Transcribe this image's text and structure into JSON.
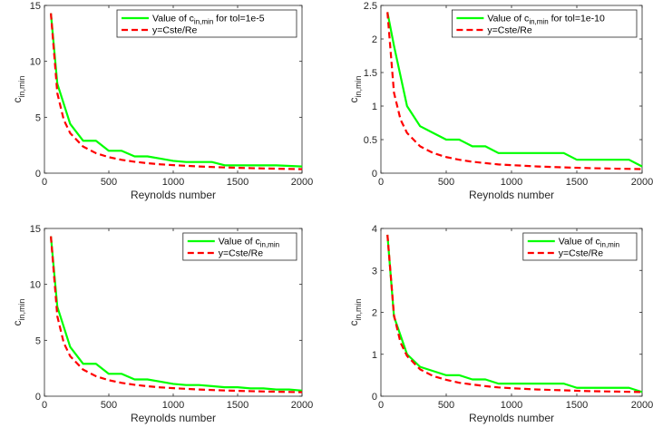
{
  "chart_data": [
    {
      "type": "line",
      "xlabel": "Reynolds number",
      "ylabel_main": "c",
      "ylabel_sub": "in,min",
      "xlim": [
        0,
        2000
      ],
      "ylim": [
        0,
        15
      ],
      "xticks": [
        0,
        500,
        1000,
        1500,
        2000
      ],
      "yticks": [
        0,
        5,
        10,
        15
      ],
      "grid": false,
      "legend_position": "top-right",
      "series": [
        {
          "name_main": "Value of c",
          "name_sub": "in,min",
          "name_suffix": " for tol=1e-5",
          "color": "#00ff00",
          "style": "solid",
          "x": [
            50,
            100,
            200,
            300,
            400,
            500,
            600,
            700,
            800,
            900,
            1000,
            1100,
            1200,
            1300,
            1400,
            1500,
            1600,
            1700,
            1800,
            1900,
            2000
          ],
          "y": [
            14.3,
            8.0,
            4.4,
            2.9,
            2.9,
            2.0,
            2.0,
            1.5,
            1.5,
            1.3,
            1.1,
            1.0,
            1.0,
            1.0,
            0.7,
            0.7,
            0.7,
            0.7,
            0.7,
            0.65,
            0.6
          ]
        },
        {
          "name_main": "y=Cste/Re",
          "name_sub": "",
          "name_suffix": "",
          "color": "#ff0000",
          "style": "dashed",
          "x": [
            50,
            100,
            150,
            200,
            300,
            400,
            500,
            600,
            700,
            800,
            900,
            1000,
            1200,
            1400,
            1600,
            1800,
            2000
          ],
          "y": [
            14.3,
            7.15,
            4.77,
            3.58,
            2.38,
            1.79,
            1.43,
            1.19,
            1.02,
            0.89,
            0.79,
            0.72,
            0.6,
            0.51,
            0.45,
            0.4,
            0.36
          ]
        }
      ]
    },
    {
      "type": "line",
      "xlabel": "Reynolds number",
      "ylabel_main": "c",
      "ylabel_sub": "in,min",
      "xlim": [
        0,
        2000
      ],
      "ylim": [
        0,
        2.5
      ],
      "xticks": [
        0,
        500,
        1000,
        1500,
        2000
      ],
      "yticks": [
        0,
        0.5,
        1,
        1.5,
        2,
        2.5
      ],
      "grid": false,
      "legend_position": "top-right",
      "series": [
        {
          "name_main": "Value of c",
          "name_sub": "in,min",
          "name_suffix": " for tol=1e-10",
          "color": "#00ff00",
          "style": "solid",
          "x": [
            50,
            100,
            200,
            300,
            400,
            500,
            600,
            700,
            800,
            900,
            1000,
            1100,
            1200,
            1300,
            1400,
            1500,
            1600,
            1700,
            1800,
            1900,
            2000
          ],
          "y": [
            2.4,
            1.9,
            1.0,
            0.7,
            0.6,
            0.5,
            0.5,
            0.4,
            0.4,
            0.3,
            0.3,
            0.3,
            0.3,
            0.3,
            0.3,
            0.2,
            0.2,
            0.2,
            0.2,
            0.2,
            0.1
          ]
        },
        {
          "name_main": "y=Cste/Re",
          "name_sub": "",
          "name_suffix": "",
          "color": "#ff0000",
          "style": "dashed",
          "x": [
            50,
            100,
            150,
            200,
            300,
            400,
            500,
            600,
            700,
            800,
            900,
            1000,
            1200,
            1400,
            1600,
            1800,
            2000
          ],
          "y": [
            2.4,
            1.2,
            0.8,
            0.6,
            0.4,
            0.3,
            0.24,
            0.2,
            0.17,
            0.15,
            0.13,
            0.12,
            0.1,
            0.086,
            0.075,
            0.067,
            0.06
          ]
        }
      ]
    },
    {
      "type": "line",
      "xlabel": "Reynolds number",
      "ylabel_main": "c",
      "ylabel_sub": "in,min",
      "xlim": [
        0,
        2000
      ],
      "ylim": [
        0,
        15
      ],
      "xticks": [
        0,
        500,
        1000,
        1500,
        2000
      ],
      "yticks": [
        0,
        5,
        10,
        15
      ],
      "grid": false,
      "legend_position": "top-right",
      "series": [
        {
          "name_main": "Value of c",
          "name_sub": "in,min",
          "name_suffix": "",
          "color": "#00ff00",
          "style": "solid",
          "x": [
            50,
            100,
            200,
            300,
            400,
            500,
            600,
            700,
            800,
            900,
            1000,
            1100,
            1200,
            1300,
            1400,
            1500,
            1600,
            1700,
            1800,
            1900,
            2000
          ],
          "y": [
            14.3,
            8.0,
            4.4,
            2.9,
            2.9,
            2.0,
            2.0,
            1.5,
            1.5,
            1.3,
            1.1,
            1.0,
            1.0,
            0.9,
            0.8,
            0.8,
            0.7,
            0.7,
            0.6,
            0.6,
            0.5
          ]
        },
        {
          "name_main": "y=Cste/Re",
          "name_sub": "",
          "name_suffix": "",
          "color": "#ff0000",
          "style": "dashed",
          "x": [
            50,
            100,
            150,
            200,
            300,
            400,
            500,
            600,
            700,
            800,
            900,
            1000,
            1200,
            1400,
            1600,
            1800,
            2000
          ],
          "y": [
            14.3,
            7.15,
            4.77,
            3.58,
            2.38,
            1.79,
            1.43,
            1.19,
            1.02,
            0.89,
            0.79,
            0.72,
            0.6,
            0.51,
            0.45,
            0.4,
            0.36
          ]
        }
      ]
    },
    {
      "type": "line",
      "xlabel": "Reynolds number",
      "ylabel_main": "c",
      "ylabel_sub": "in,min",
      "xlim": [
        0,
        2000
      ],
      "ylim": [
        0,
        4
      ],
      "xticks": [
        0,
        500,
        1000,
        1500,
        2000
      ],
      "yticks": [
        0,
        1,
        2,
        3,
        4
      ],
      "grid": false,
      "legend_position": "top-right",
      "series": [
        {
          "name_main": "Value of c",
          "name_sub": "in,min",
          "name_suffix": "",
          "color": "#00ff00",
          "style": "solid",
          "x": [
            50,
            100,
            200,
            300,
            400,
            500,
            600,
            700,
            800,
            900,
            1000,
            1100,
            1200,
            1300,
            1400,
            1500,
            1600,
            1700,
            1800,
            1900,
            2000
          ],
          "y": [
            3.85,
            1.9,
            1.0,
            0.7,
            0.6,
            0.5,
            0.5,
            0.4,
            0.4,
            0.3,
            0.3,
            0.3,
            0.3,
            0.3,
            0.3,
            0.2,
            0.2,
            0.2,
            0.2,
            0.2,
            0.1
          ]
        },
        {
          "name_main": "y=Cste/Re",
          "name_sub": "",
          "name_suffix": "",
          "color": "#ff0000",
          "style": "dashed",
          "x": [
            50,
            100,
            150,
            200,
            300,
            400,
            500,
            600,
            700,
            800,
            900,
            1000,
            1200,
            1400,
            1600,
            1800,
            2000
          ],
          "y": [
            3.85,
            1.93,
            1.28,
            0.96,
            0.64,
            0.48,
            0.39,
            0.32,
            0.28,
            0.24,
            0.21,
            0.19,
            0.16,
            0.14,
            0.12,
            0.11,
            0.1
          ]
        }
      ]
    }
  ]
}
